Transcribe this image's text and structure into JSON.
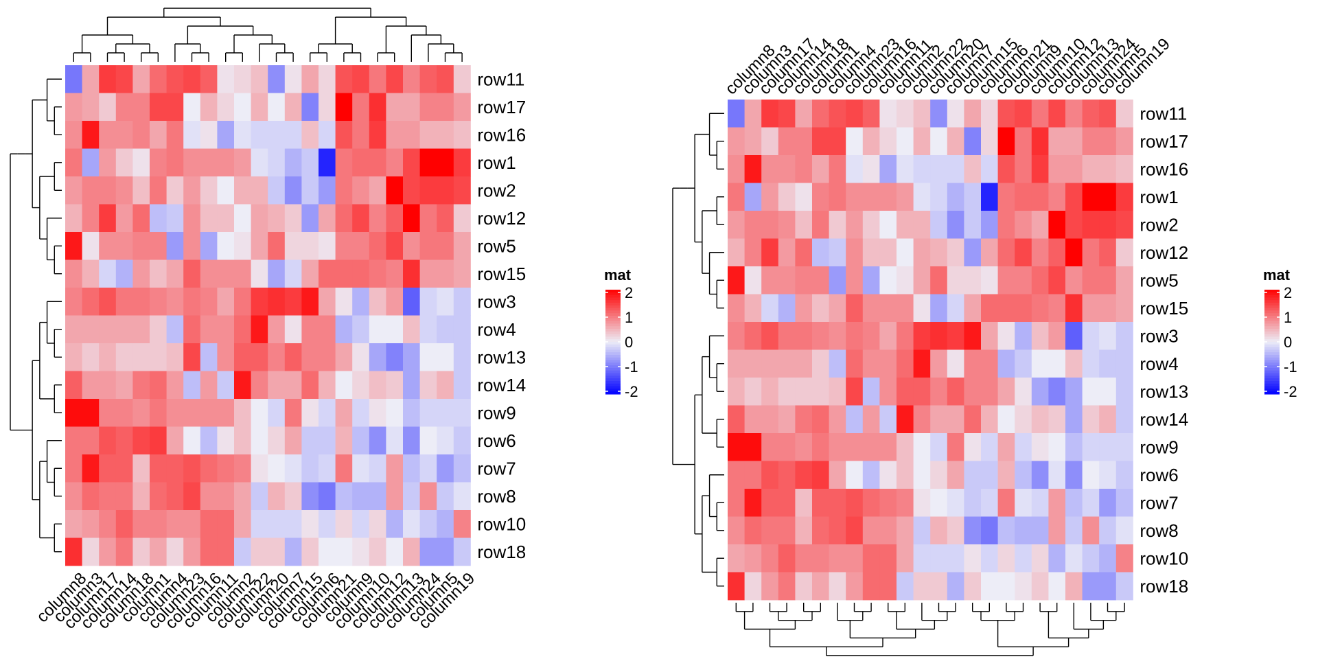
{
  "chart_data": [
    {
      "type": "heatmap",
      "rows": [
        "row11",
        "row17",
        "row16",
        "row1",
        "row2",
        "row12",
        "row5",
        "row15",
        "row3",
        "row4",
        "row13",
        "row14",
        "row9",
        "row6",
        "row7",
        "row8",
        "row10",
        "row18"
      ],
      "columns": [
        "column8",
        "column3",
        "column17",
        "column14",
        "column18",
        "column1",
        "column4",
        "column23",
        "column16",
        "column11",
        "column2",
        "column22",
        "column20",
        "column7",
        "column15",
        "column6",
        "column21",
        "column9",
        "column10",
        "column12",
        "column13",
        "column24",
        "column5",
        "column19"
      ],
      "values": [
        [
          -1.0,
          0.6,
          1.5,
          1.4,
          0.6,
          1.1,
          1.3,
          1.4,
          1.2,
          0.1,
          0.2,
          0.4,
          -0.8,
          0.1,
          0.6,
          0.2,
          1.3,
          1.4,
          1.0,
          1.4,
          0.9,
          1.2,
          1.3,
          0.3
        ],
        [
          0.7,
          0.6,
          0.3,
          0.9,
          0.9,
          1.4,
          1.4,
          0.0,
          0.5,
          0.2,
          0.0,
          0.5,
          0.0,
          0.5,
          -0.9,
          0.2,
          2.0,
          1.0,
          1.6,
          0.6,
          0.6,
          0.9,
          0.9,
          0.7
        ],
        [
          0.8,
          1.8,
          0.8,
          0.8,
          0.9,
          0.6,
          1.0,
          -0.1,
          0.1,
          -0.6,
          -0.1,
          -0.2,
          -0.2,
          -0.2,
          0.4,
          -0.2,
          1.3,
          1.0,
          1.5,
          0.7,
          0.7,
          0.5,
          0.5,
          0.4
        ],
        [
          1.0,
          -0.6,
          0.7,
          0.3,
          0.1,
          0.9,
          1.0,
          0.8,
          0.8,
          0.8,
          0.7,
          -0.1,
          -0.2,
          -0.5,
          -0.3,
          -1.7,
          1.0,
          1.1,
          1.1,
          0.9,
          1.4,
          2.0,
          2.0,
          1.5
        ],
        [
          0.7,
          0.9,
          0.9,
          0.8,
          0.4,
          1.0,
          0.3,
          0.7,
          0.3,
          0.0,
          0.5,
          0.5,
          -0.3,
          -0.8,
          -0.3,
          -0.7,
          1.0,
          0.8,
          0.6,
          2.0,
          1.4,
          1.5,
          1.5,
          1.4
        ],
        [
          0.5,
          0.9,
          1.5,
          0.7,
          1.1,
          -0.4,
          -0.3,
          0.8,
          0.4,
          0.4,
          0.0,
          0.6,
          0.5,
          0.3,
          -0.7,
          0.6,
          1.1,
          1.4,
          0.9,
          1.2,
          2.0,
          1.0,
          1.2,
          0.3
        ],
        [
          1.8,
          0.1,
          0.8,
          0.8,
          0.9,
          0.9,
          -0.7,
          0.8,
          -0.6,
          0.0,
          0.1,
          0.6,
          1.1,
          0.2,
          0.2,
          0.1,
          0.9,
          0.9,
          1.1,
          1.4,
          0.8,
          1.0,
          1.0,
          0.6
        ],
        [
          0.8,
          0.5,
          -0.2,
          -0.5,
          0.7,
          0.4,
          0.6,
          1.2,
          0.8,
          0.8,
          0.8,
          0.1,
          -0.6,
          -0.2,
          0.6,
          1.1,
          1.1,
          1.1,
          1.0,
          0.9,
          1.6,
          0.7,
          0.7,
          0.6
        ],
        [
          0.9,
          1.1,
          1.3,
          1.0,
          1.0,
          0.9,
          0.8,
          1.0,
          0.9,
          0.6,
          1.0,
          1.5,
          1.6,
          1.5,
          1.8,
          0.6,
          0.1,
          -0.5,
          0.4,
          0.7,
          -1.2,
          -0.2,
          -0.1,
          -0.3
        ],
        [
          0.6,
          0.6,
          0.6,
          0.6,
          0.6,
          0.3,
          -0.4,
          1.1,
          0.8,
          0.8,
          1.1,
          1.8,
          0.7,
          0.1,
          0.9,
          0.9,
          -0.5,
          -0.3,
          0.0,
          0.0,
          0.4,
          -0.2,
          -0.3,
          -0.3
        ],
        [
          0.5,
          0.3,
          0.5,
          0.3,
          0.3,
          0.3,
          0.4,
          1.4,
          -0.4,
          0.8,
          1.2,
          1.2,
          0.9,
          1.2,
          0.9,
          0.9,
          0.6,
          0.1,
          -0.6,
          -0.9,
          -0.6,
          0.0,
          0.0,
          -0.3
        ],
        [
          1.2,
          0.7,
          0.7,
          0.6,
          1.0,
          1.1,
          0.7,
          -0.4,
          0.7,
          -0.3,
          1.8,
          0.9,
          0.6,
          0.6,
          1.1,
          0.5,
          0.0,
          0.2,
          0.4,
          0.3,
          -0.6,
          0.3,
          0.5,
          -0.3
        ],
        [
          1.9,
          1.9,
          0.9,
          0.9,
          0.8,
          1.0,
          0.8,
          0.8,
          0.8,
          0.8,
          0.4,
          0.0,
          -0.2,
          1.0,
          0.1,
          -0.2,
          0.6,
          -0.2,
          0.1,
          0.0,
          -0.4,
          -0.2,
          -0.2,
          -0.2
        ],
        [
          1.0,
          1.0,
          1.3,
          1.2,
          1.4,
          1.5,
          0.6,
          0.0,
          -0.4,
          0.1,
          0.4,
          0.0,
          0.2,
          0.6,
          -0.3,
          -0.3,
          0.5,
          -0.4,
          -0.8,
          -0.1,
          -0.8,
          0.0,
          -0.1,
          -0.3
        ],
        [
          1.0,
          1.8,
          1.2,
          1.2,
          0.4,
          1.2,
          1.2,
          1.3,
          1.1,
          1.0,
          0.9,
          0.1,
          0.0,
          -0.1,
          -0.3,
          -0.2,
          1.0,
          -0.1,
          -0.2,
          0.7,
          -0.4,
          -0.2,
          -0.7,
          -0.4
        ],
        [
          0.8,
          1.1,
          1.0,
          1.0,
          0.5,
          1.1,
          1.2,
          1.4,
          0.8,
          0.8,
          0.6,
          -0.3,
          0.5,
          0.3,
          -0.8,
          -1.0,
          -0.4,
          -0.5,
          -0.5,
          0.7,
          -0.3,
          0.8,
          -0.3,
          -0.1
        ],
        [
          0.6,
          0.7,
          0.9,
          1.2,
          0.9,
          0.9,
          0.8,
          0.8,
          1.1,
          1.1,
          0.6,
          -0.2,
          -0.2,
          -0.2,
          0.1,
          -0.2,
          0.2,
          -0.2,
          0.2,
          -0.5,
          -0.1,
          -0.3,
          -0.5,
          0.9
        ],
        [
          1.6,
          0.2,
          0.7,
          1.0,
          0.3,
          0.6,
          0.2,
          0.7,
          1.1,
          1.1,
          -0.3,
          0.3,
          0.3,
          -0.5,
          0.3,
          0.0,
          0.0,
          0.1,
          0.3,
          0.0,
          0.5,
          -0.7,
          -0.7,
          -0.3
        ]
      ],
      "legend_title": "mat",
      "legend_ticks": [
        "2",
        "1",
        "0",
        "-1",
        "-2"
      ],
      "colors": {
        "high": "#ff0000",
        "mid": "#ededf7",
        "low": "#0000ff"
      }
    },
    {
      "type": "heatmap",
      "rows": [
        "row11",
        "row17",
        "row16",
        "row1",
        "row2",
        "row12",
        "row5",
        "row15",
        "row3",
        "row4",
        "row13",
        "row14",
        "row9",
        "row6",
        "row7",
        "row8",
        "row10",
        "row18"
      ],
      "columns": [
        "column8",
        "column3",
        "column17",
        "column14",
        "column18",
        "column1",
        "column4",
        "column23",
        "column16",
        "column11",
        "column2",
        "column22",
        "column20",
        "column7",
        "column15",
        "column6",
        "column21",
        "column9",
        "column10",
        "column12",
        "column13",
        "column24",
        "column5",
        "column19"
      ],
      "values": [
        [
          -1.0,
          0.6,
          1.5,
          1.4,
          0.6,
          1.1,
          1.3,
          1.4,
          1.2,
          0.1,
          0.2,
          0.4,
          -0.8,
          0.1,
          0.6,
          0.2,
          1.3,
          1.4,
          1.0,
          1.4,
          0.9,
          1.2,
          1.3,
          0.3
        ],
        [
          0.7,
          0.6,
          0.3,
          0.9,
          0.9,
          1.4,
          1.4,
          0.0,
          0.5,
          0.2,
          0.0,
          0.5,
          0.0,
          0.5,
          -0.9,
          0.2,
          2.0,
          1.0,
          1.6,
          0.6,
          0.6,
          0.9,
          0.9,
          0.7
        ],
        [
          0.8,
          1.8,
          0.8,
          0.8,
          0.9,
          0.6,
          1.0,
          -0.1,
          0.1,
          -0.6,
          -0.1,
          -0.2,
          -0.2,
          -0.2,
          0.4,
          -0.2,
          1.3,
          1.0,
          1.5,
          0.7,
          0.7,
          0.5,
          0.5,
          0.4
        ],
        [
          1.0,
          -0.6,
          0.7,
          0.3,
          0.1,
          0.9,
          1.0,
          0.8,
          0.8,
          0.8,
          0.7,
          -0.1,
          -0.2,
          -0.5,
          -0.3,
          -1.7,
          1.0,
          1.1,
          1.1,
          0.9,
          1.4,
          2.0,
          2.0,
          1.5
        ],
        [
          0.7,
          0.9,
          0.9,
          0.8,
          0.4,
          1.0,
          0.3,
          0.7,
          0.3,
          0.0,
          0.5,
          0.5,
          -0.3,
          -0.8,
          -0.3,
          -0.7,
          1.0,
          0.8,
          0.6,
          2.0,
          1.4,
          1.5,
          1.5,
          1.4
        ],
        [
          0.5,
          0.9,
          1.5,
          0.7,
          1.1,
          -0.4,
          -0.3,
          0.8,
          0.4,
          0.4,
          0.0,
          0.6,
          0.5,
          0.3,
          -0.7,
          0.6,
          1.1,
          1.4,
          0.9,
          1.2,
          2.0,
          1.0,
          1.2,
          0.3
        ],
        [
          1.8,
          0.1,
          0.8,
          0.8,
          0.9,
          0.9,
          -0.7,
          0.8,
          -0.6,
          0.0,
          0.1,
          0.6,
          1.1,
          0.2,
          0.2,
          0.1,
          0.9,
          0.9,
          1.1,
          1.4,
          0.8,
          1.0,
          1.0,
          0.6
        ],
        [
          0.8,
          0.5,
          -0.2,
          -0.5,
          0.7,
          0.4,
          0.6,
          1.2,
          0.8,
          0.8,
          0.8,
          0.1,
          -0.6,
          -0.2,
          0.6,
          1.1,
          1.1,
          1.1,
          1.0,
          0.9,
          1.6,
          0.7,
          0.7,
          0.6
        ],
        [
          0.9,
          1.1,
          1.3,
          1.0,
          1.0,
          0.9,
          0.8,
          1.0,
          0.9,
          0.6,
          1.0,
          1.5,
          1.6,
          1.5,
          1.8,
          0.6,
          0.1,
          -0.5,
          0.4,
          0.7,
          -1.2,
          -0.2,
          -0.1,
          -0.3
        ],
        [
          0.6,
          0.6,
          0.6,
          0.6,
          0.6,
          0.3,
          -0.4,
          1.1,
          0.8,
          0.8,
          1.1,
          1.8,
          0.7,
          0.1,
          0.9,
          0.9,
          -0.5,
          -0.3,
          0.0,
          0.0,
          0.4,
          -0.2,
          -0.3,
          -0.3
        ],
        [
          0.5,
          0.3,
          0.5,
          0.3,
          0.3,
          0.3,
          0.4,
          1.4,
          -0.4,
          0.8,
          1.2,
          1.2,
          0.9,
          1.2,
          0.9,
          0.9,
          0.6,
          0.1,
          -0.6,
          -0.9,
          -0.6,
          0.0,
          0.0,
          -0.3
        ],
        [
          1.2,
          0.7,
          0.7,
          0.6,
          1.0,
          1.1,
          0.7,
          -0.4,
          0.7,
          -0.3,
          1.8,
          0.9,
          0.6,
          0.6,
          1.1,
          0.5,
          0.0,
          0.2,
          0.4,
          0.3,
          -0.6,
          0.3,
          0.5,
          -0.3
        ],
        [
          1.9,
          1.9,
          0.9,
          0.9,
          0.8,
          1.0,
          0.8,
          0.8,
          0.8,
          0.8,
          0.4,
          0.0,
          -0.2,
          1.0,
          0.1,
          -0.2,
          0.6,
          -0.2,
          0.1,
          0.0,
          -0.4,
          -0.2,
          -0.2,
          -0.2
        ],
        [
          1.0,
          1.0,
          1.3,
          1.2,
          1.4,
          1.5,
          0.6,
          0.0,
          -0.4,
          0.1,
          0.4,
          0.0,
          0.2,
          0.6,
          -0.3,
          -0.3,
          0.5,
          -0.4,
          -0.8,
          -0.1,
          -0.8,
          0.0,
          -0.1,
          -0.3
        ],
        [
          1.0,
          1.8,
          1.2,
          1.2,
          0.4,
          1.2,
          1.2,
          1.3,
          1.1,
          1.0,
          0.9,
          0.1,
          0.0,
          -0.1,
          -0.3,
          -0.2,
          1.0,
          -0.1,
          -0.2,
          0.7,
          -0.4,
          -0.2,
          -0.7,
          -0.4
        ],
        [
          0.8,
          1.1,
          1.0,
          1.0,
          0.5,
          1.1,
          1.2,
          1.4,
          0.8,
          0.8,
          0.6,
          -0.3,
          0.5,
          0.3,
          -0.8,
          -1.0,
          -0.4,
          -0.5,
          -0.5,
          0.7,
          -0.3,
          0.8,
          -0.3,
          -0.1
        ],
        [
          0.6,
          0.7,
          0.9,
          1.2,
          0.9,
          0.9,
          0.8,
          0.8,
          1.1,
          1.1,
          0.6,
          -0.2,
          -0.2,
          -0.2,
          0.1,
          -0.2,
          0.2,
          -0.2,
          0.2,
          -0.5,
          -0.1,
          -0.3,
          -0.5,
          0.9
        ],
        [
          1.6,
          0.2,
          0.7,
          1.0,
          0.3,
          0.6,
          0.2,
          0.7,
          1.1,
          1.1,
          -0.3,
          0.3,
          0.3,
          -0.5,
          0.3,
          0.0,
          0.0,
          0.1,
          0.3,
          0.0,
          0.5,
          -0.7,
          -0.7,
          -0.3
        ]
      ],
      "legend_title": "mat",
      "legend_ticks": [
        "2",
        "1",
        "0",
        "-1",
        "-2"
      ],
      "colors": {
        "high": "#ff0000",
        "mid": "#ededf7",
        "low": "#0000ff"
      }
    }
  ]
}
